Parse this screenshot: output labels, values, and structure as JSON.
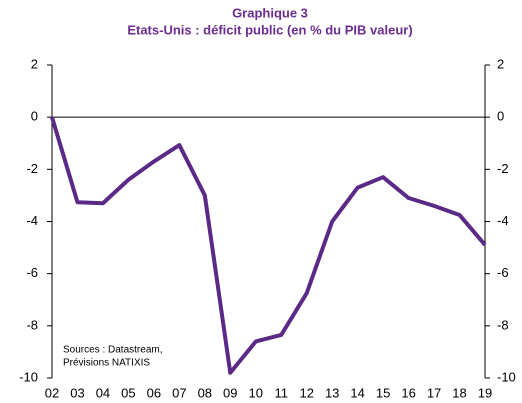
{
  "chart_data": {
    "type": "line",
    "title": "Graphique 3",
    "subtitle": "Etats-Unis : déficit public (en % du PIB valeur)",
    "annotations": [
      "Sources : Datastream,",
      "Prévisions NATIXIS"
    ],
    "categories": [
      "02",
      "03",
      "04",
      "05",
      "06",
      "07",
      "08",
      "09",
      "10",
      "11",
      "12",
      "13",
      "14",
      "15",
      "16",
      "17",
      "18",
      "19"
    ],
    "series": [
      {
        "name": "Déficit public",
        "color": "#5b2a86",
        "values": [
          0,
          -3.26,
          -3.3,
          -2.4,
          -1.7,
          -1.07,
          -3.0,
          -9.8,
          -8.6,
          -8.35,
          -6.75,
          -4.0,
          -2.7,
          -2.3,
          -3.1,
          -3.4,
          -3.75,
          -4.9
        ]
      }
    ],
    "ylim": [
      -10,
      2
    ],
    "yticks": [
      2,
      0,
      -2,
      -4,
      -6,
      -8,
      -10
    ],
    "y2lim": [
      -10,
      2
    ],
    "y2ticks": [
      2,
      0,
      -2,
      -4,
      -6,
      -8,
      -10
    ],
    "grid": false
  }
}
